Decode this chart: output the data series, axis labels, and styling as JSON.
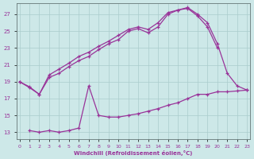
{
  "xlabel": "Windchill (Refroidissement éolien,°C)",
  "xlim": [
    -0.3,
    23.3
  ],
  "ylim": [
    12.2,
    28.3
  ],
  "xticks": [
    0,
    1,
    2,
    3,
    4,
    5,
    6,
    7,
    8,
    9,
    10,
    11,
    12,
    13,
    14,
    15,
    16,
    17,
    18,
    19,
    20,
    21,
    22,
    23
  ],
  "yticks": [
    13,
    15,
    17,
    19,
    21,
    23,
    25,
    27
  ],
  "bg_color": "#cde8e8",
  "line_color": "#993399",
  "grid_color": "#aacccc",
  "c1x": [
    0,
    1,
    2,
    3,
    4,
    5,
    6,
    7,
    8,
    9,
    10,
    11,
    12,
    13,
    14,
    15,
    16,
    17,
    18,
    19,
    20,
    21,
    22,
    23
  ],
  "c1y": [
    19.0,
    18.4,
    17.5,
    19.8,
    20.5,
    21.2,
    22.0,
    22.5,
    23.2,
    23.8,
    24.5,
    25.2,
    25.5,
    25.2,
    26.0,
    27.2,
    27.5,
    27.8,
    27.0,
    26.0,
    23.5,
    20.0,
    18.5,
    18.0
  ],
  "c2x": [
    0,
    1,
    2,
    3,
    4,
    5,
    6,
    7,
    8,
    9,
    10,
    11,
    12,
    13,
    14,
    15,
    16,
    17,
    18,
    19,
    20
  ],
  "c2y": [
    19.0,
    18.3,
    17.5,
    19.5,
    20.0,
    20.8,
    21.5,
    22.0,
    22.8,
    23.5,
    24.0,
    25.0,
    25.3,
    24.8,
    25.5,
    27.0,
    27.5,
    27.7,
    26.8,
    25.5,
    23.0
  ],
  "c3x": [
    1,
    2,
    3,
    4,
    5,
    6,
    7,
    8,
    9,
    10,
    11,
    12,
    13,
    14,
    15,
    16,
    17,
    18,
    19,
    20,
    21,
    22,
    23
  ],
  "c3y": [
    13.2,
    13.0,
    13.2,
    13.0,
    13.2,
    13.5,
    18.5,
    15.0,
    14.8,
    14.8,
    15.0,
    15.2,
    15.5,
    15.8,
    16.2,
    16.5,
    17.0,
    17.5,
    17.5,
    17.8,
    17.8,
    17.9,
    18.0
  ]
}
